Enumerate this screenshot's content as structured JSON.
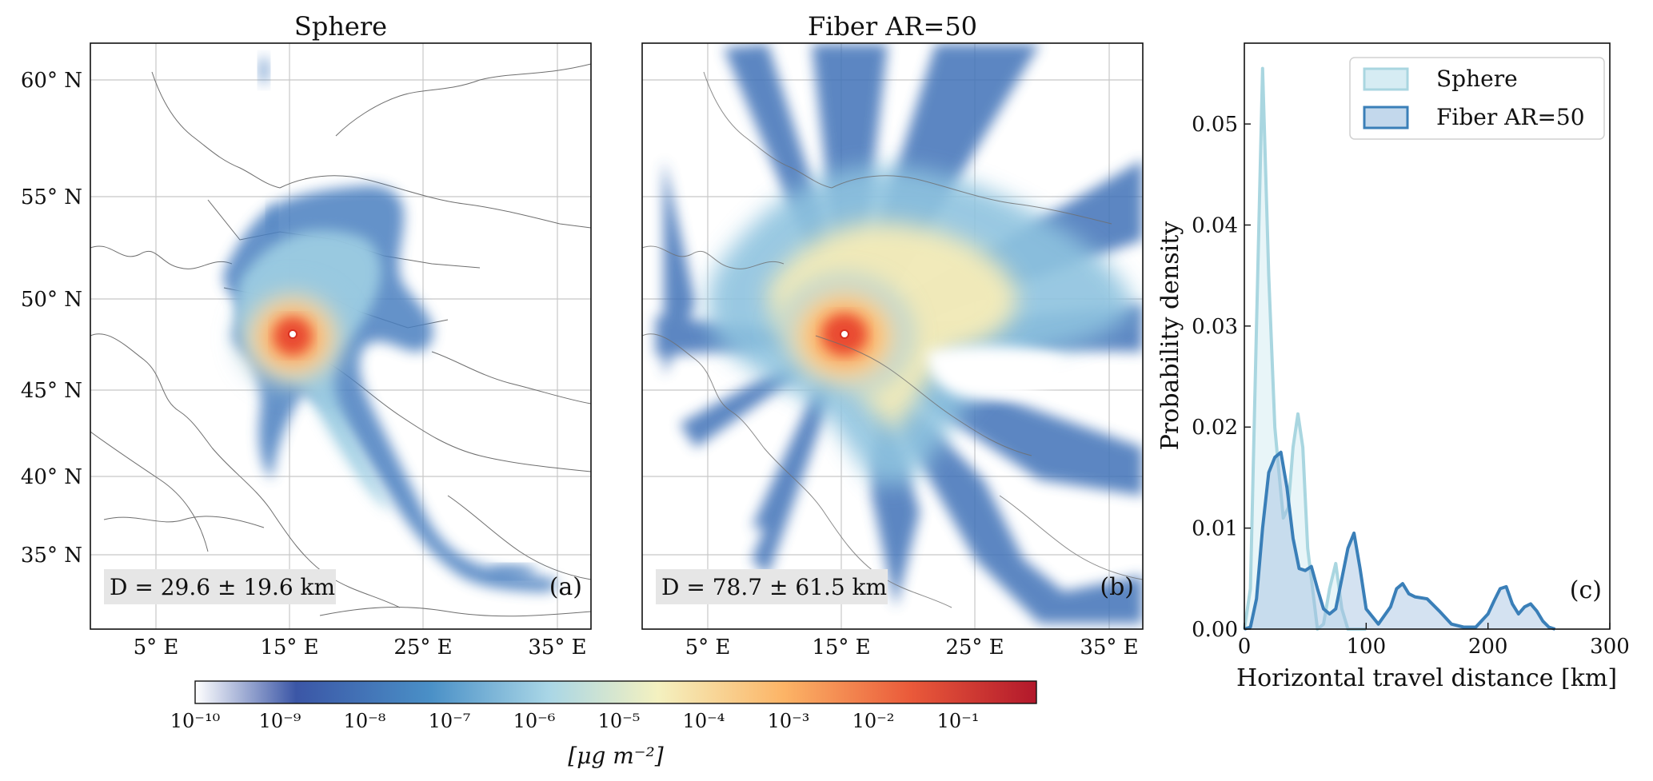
{
  "panels": {
    "a": {
      "title": "Sphere",
      "panel_label": "(a)",
      "stat_text": "D = 29.6 ± 19.6 km"
    },
    "b": {
      "title": "Fiber AR=50",
      "panel_label": "(b)",
      "stat_text": "D = 78.7 ± 61.5 km"
    },
    "c": {
      "panel_label": "(c)"
    }
  },
  "map_axes": {
    "lat_ticks": [
      "60° N",
      "55° N",
      "50° N",
      "45° N",
      "40° N",
      "35° N"
    ],
    "lon_ticks": [
      "5° E",
      "15° E",
      "25° E",
      "35° E"
    ]
  },
  "colorbar": {
    "label": "[μg m⁻²]",
    "tick_labels": [
      "10⁻¹⁰",
      "10⁻⁹",
      "10⁻⁸",
      "10⁻⁷",
      "10⁻⁶",
      "10⁻⁵",
      "10⁻⁴",
      "10⁻³",
      "10⁻²",
      "10⁻¹"
    ],
    "colors": [
      "#ffffff",
      "#3b56a6",
      "#4a90c7",
      "#a9d6e6",
      "#f4f1c0",
      "#fcb466",
      "#ea5a3a",
      "#b2182b"
    ]
  },
  "chart_data": {
    "type": "area",
    "xlabel": "Horizontal travel distance [km]",
    "ylabel": "Probability density",
    "xlim": [
      0,
      300
    ],
    "ylim": [
      0,
      0.058
    ],
    "x_ticks": [
      "0",
      "100",
      "200",
      "300"
    ],
    "y_ticks": [
      "0.00",
      "0.01",
      "0.02",
      "0.03",
      "0.04",
      "0.05"
    ],
    "legend_position": "top-right",
    "series": [
      {
        "name": "Sphere",
        "color": "#a9d6e0",
        "x": [
          0,
          5,
          10,
          15,
          20,
          25,
          28,
          32,
          36,
          40,
          44,
          48,
          52,
          56,
          60,
          65,
          70,
          75,
          80,
          85,
          90,
          95,
          100
        ],
        "y": [
          0,
          0.004,
          0.03,
          0.0555,
          0.035,
          0.02,
          0.016,
          0.011,
          0.012,
          0.018,
          0.0213,
          0.018,
          0.008,
          0.004,
          0.0,
          0.0005,
          0.004,
          0.0065,
          0.002,
          0.0,
          0.0,
          0.0,
          0.0
        ]
      },
      {
        "name": "Fiber AR=50",
        "color": "#3a7fb8",
        "x": [
          0,
          5,
          10,
          15,
          20,
          25,
          30,
          35,
          40,
          45,
          50,
          55,
          60,
          65,
          70,
          75,
          80,
          85,
          90,
          95,
          100,
          110,
          120,
          125,
          130,
          135,
          140,
          150,
          160,
          170,
          180,
          190,
          200,
          205,
          210,
          215,
          220,
          225,
          230,
          235,
          240,
          245,
          250,
          255
        ],
        "y": [
          0,
          0.0002,
          0.003,
          0.01,
          0.0155,
          0.017,
          0.0175,
          0.014,
          0.009,
          0.006,
          0.0058,
          0.0062,
          0.004,
          0.002,
          0.0015,
          0.002,
          0.005,
          0.008,
          0.0095,
          0.006,
          0.002,
          0.0005,
          0.0022,
          0.004,
          0.0045,
          0.0035,
          0.0032,
          0.003,
          0.0018,
          0.0005,
          0.0002,
          0.0002,
          0.0015,
          0.0028,
          0.004,
          0.0042,
          0.0025,
          0.0015,
          0.0022,
          0.0025,
          0.0018,
          0.0008,
          0.0002,
          0.0
        ]
      }
    ]
  }
}
